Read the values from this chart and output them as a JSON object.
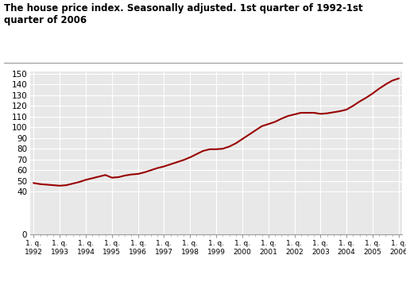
{
  "title": "The house price index. Seasonally adjusted. 1st quarter of 1992-1st quarter of 2006",
  "line_color": "#990000",
  "bg_color": "#ffffff",
  "plot_bg_color": "#e8e8e8",
  "grid_color": "#ffffff",
  "ylim": [
    0,
    152
  ],
  "yticks": [
    0,
    40,
    50,
    60,
    70,
    80,
    90,
    100,
    110,
    120,
    130,
    140,
    150
  ],
  "years": [
    1992,
    1993,
    1994,
    1995,
    1996,
    1997,
    1998,
    1999,
    2000,
    2001,
    2002,
    2003,
    2004,
    2005,
    2006
  ],
  "values": [
    48.0,
    47.0,
    46.5,
    46.0,
    45.5,
    46.0,
    47.5,
    49.0,
    51.0,
    52.5,
    54.0,
    55.5,
    53.0,
    53.5,
    55.0,
    56.0,
    56.5,
    58.0,
    60.0,
    62.0,
    63.5,
    65.5,
    67.5,
    69.5,
    72.0,
    75.0,
    78.0,
    79.5,
    79.5,
    80.0,
    82.0,
    85.0,
    89.0,
    93.0,
    97.0,
    101.0,
    103.0,
    105.0,
    108.0,
    110.5,
    112.0,
    113.5,
    113.5,
    113.5,
    112.5,
    113.0,
    114.0,
    115.0,
    116.5,
    120.0,
    124.0,
    127.5,
    131.5,
    136.0,
    140.0,
    143.5,
    145.5
  ]
}
